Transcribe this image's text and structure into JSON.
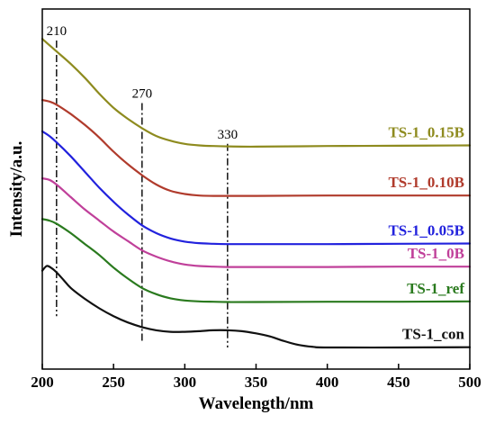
{
  "chart_data": {
    "type": "line",
    "title": "",
    "xlabel": "Wavelength/nm",
    "ylabel": "Intensity/a.u.",
    "xlim": [
      200,
      500
    ],
    "ylim": [
      0,
      1
    ],
    "x_ticks": [
      "200",
      "250",
      "300",
      "350",
      "400",
      "450",
      "500"
    ],
    "y_ticks": [],
    "grid": false,
    "legend": "labels placed at right end of each curve",
    "annotations": [
      {
        "label": "210",
        "x": 210,
        "y_from": 0.1,
        "y_to": 0.98
      },
      {
        "label": "270",
        "x": 270,
        "y_from": 0.02,
        "y_to": 0.78
      },
      {
        "label": "330",
        "x": 330,
        "y_from": 0.0,
        "y_to": 0.65
      }
    ],
    "series": [
      {
        "name": "TS-1_0.15B",
        "color": "#8e8b1f",
        "x": [
          200,
          205,
          210,
          220,
          230,
          240,
          250,
          260,
          270,
          280,
          290,
          300,
          310,
          320,
          330,
          350,
          400,
          450,
          500
        ],
        "y": [
          0.985,
          0.965,
          0.945,
          0.905,
          0.86,
          0.81,
          0.765,
          0.73,
          0.7,
          0.675,
          0.66,
          0.65,
          0.645,
          0.643,
          0.642,
          0.641,
          0.643,
          0.644,
          0.645
        ]
      },
      {
        "name": "TS-1_0.10B",
        "color": "#b03b2c",
        "x": [
          200,
          205,
          210,
          220,
          230,
          240,
          250,
          260,
          270,
          280,
          290,
          300,
          310,
          320,
          330,
          350,
          400,
          450,
          500
        ],
        "y": [
          0.79,
          0.785,
          0.775,
          0.745,
          0.71,
          0.67,
          0.625,
          0.585,
          0.55,
          0.52,
          0.5,
          0.49,
          0.485,
          0.484,
          0.484,
          0.484,
          0.485,
          0.485,
          0.485
        ]
      },
      {
        "name": "TS-1_0.05B",
        "color": "#2222dd",
        "x": [
          200,
          205,
          210,
          220,
          230,
          240,
          250,
          260,
          270,
          280,
          290,
          300,
          310,
          320,
          330,
          350,
          400,
          450,
          500
        ],
        "y": [
          0.69,
          0.675,
          0.655,
          0.61,
          0.56,
          0.51,
          0.465,
          0.425,
          0.39,
          0.365,
          0.348,
          0.338,
          0.333,
          0.331,
          0.33,
          0.33,
          0.33,
          0.331,
          0.332
        ]
      },
      {
        "name": "TS-1_0B",
        "color": "#c0409a",
        "x": [
          200,
          205,
          210,
          220,
          230,
          240,
          250,
          260,
          270,
          280,
          290,
          300,
          310,
          320,
          330,
          350,
          400,
          450,
          500
        ],
        "y": [
          0.54,
          0.535,
          0.52,
          0.48,
          0.44,
          0.405,
          0.37,
          0.34,
          0.31,
          0.29,
          0.275,
          0.265,
          0.26,
          0.258,
          0.257,
          0.257,
          0.257,
          0.258,
          0.258
        ]
      },
      {
        "name": "TS-1_ref",
        "color": "#2a7a1e",
        "x": [
          200,
          205,
          210,
          220,
          230,
          240,
          250,
          260,
          270,
          280,
          290,
          300,
          310,
          320,
          330,
          350,
          400,
          450,
          500
        ],
        "y": [
          0.41,
          0.405,
          0.395,
          0.365,
          0.33,
          0.295,
          0.255,
          0.22,
          0.19,
          0.17,
          0.157,
          0.15,
          0.147,
          0.146,
          0.145,
          0.145,
          0.146,
          0.146,
          0.147
        ]
      },
      {
        "name": "TS-1_con",
        "color": "#111111",
        "x": [
          200,
          203,
          206,
          210,
          215,
          220,
          230,
          240,
          250,
          260,
          270,
          280,
          290,
          300,
          310,
          320,
          330,
          340,
          350,
          360,
          370,
          380,
          390,
          400,
          450,
          500
        ],
        "y": [
          0.245,
          0.26,
          0.255,
          0.24,
          0.215,
          0.19,
          0.155,
          0.125,
          0.1,
          0.08,
          0.065,
          0.055,
          0.05,
          0.05,
          0.052,
          0.055,
          0.055,
          0.052,
          0.045,
          0.035,
          0.02,
          0.008,
          0.002,
          0.0,
          0.0,
          0.001
        ]
      }
    ]
  }
}
